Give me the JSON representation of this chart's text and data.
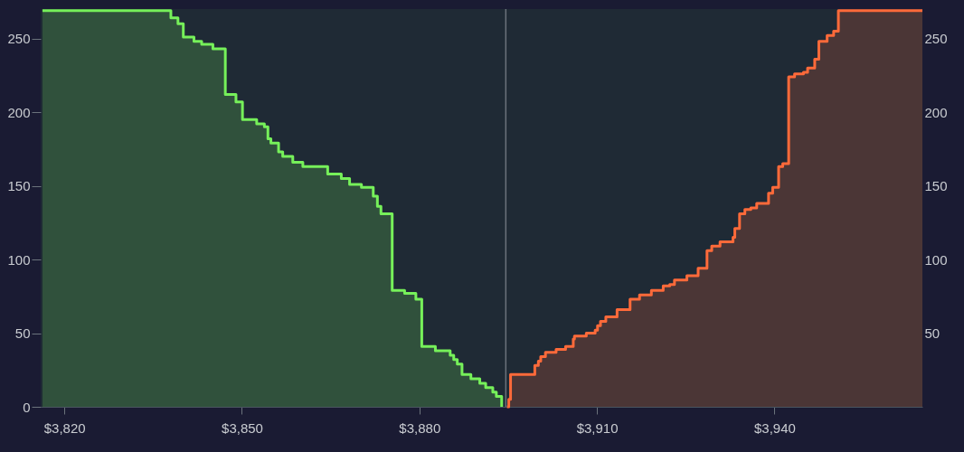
{
  "chart_data": {
    "type": "area",
    "xlim": [
      3816,
      3965
    ],
    "ylim": [
      0,
      270
    ],
    "y2lim": [
      0,
      270
    ],
    "xticks": [
      {
        "value": 3820,
        "label": "$3,820"
      },
      {
        "value": 3850,
        "label": "$3,850"
      },
      {
        "value": 3880,
        "label": "$3,880"
      },
      {
        "value": 3910,
        "label": "$3,910"
      },
      {
        "value": 3940,
        "label": "$3,940"
      }
    ],
    "yticks": [
      0,
      50,
      100,
      150,
      200,
      250
    ],
    "y2ticks": [
      50,
      100,
      150,
      200,
      250
    ],
    "ref_lines": [
      {
        "axis": "x",
        "value": 3894.6,
        "color": "#6b737c"
      }
    ],
    "series": [
      {
        "color": "#76f05a",
        "x": [
          3816.3,
          3838.0,
          3839.2,
          3840.1,
          3841.9,
          3843.2,
          3845.1,
          3847.2,
          3849.0,
          3850.1,
          3852.5,
          3853.8,
          3854.4,
          3854.9,
          3856.2,
          3856.9,
          3858.6,
          3860.3,
          3864.5,
          3866.8,
          3868.2,
          3870.2,
          3872.2,
          3872.9,
          3873.5,
          3875.4,
          3877.5,
          3879.4,
          3880.4,
          3882.7,
          3885.2,
          3885.8,
          3886.4,
          3887.2,
          3888.7,
          3890.2,
          3891.2,
          3892.4,
          3893.0,
          3893.9
        ],
        "values": [
          269,
          264,
          260,
          251,
          248,
          246,
          243,
          212,
          207,
          195,
          192,
          190,
          182,
          179,
          173,
          170,
          166,
          163,
          158,
          155,
          151,
          149,
          143,
          136,
          131,
          79,
          77,
          73,
          41,
          38,
          35,
          32,
          29,
          22,
          19,
          16,
          13,
          10,
          7,
          0
        ]
      },
      {
        "color": "#ff6a3a",
        "x": [
          3894.8,
          3895.1,
          3895.4,
          3899.5,
          3900.1,
          3900.5,
          3901.3,
          3903.1,
          3904.7,
          3906.0,
          3906.2,
          3908.2,
          3909.7,
          3910.1,
          3910.6,
          3911.5,
          3913.4,
          3915.6,
          3917.2,
          3919.2,
          3921.2,
          3922.3,
          3923.1,
          3925.2,
          3927.1,
          3928.6,
          3929.4,
          3930.8,
          3933.0,
          3933.3,
          3934.1,
          3935.0,
          3936.0,
          3937.0,
          3939.0,
          3939.7,
          3940.7,
          3941.4,
          3942.4,
          3943.4,
          3944.9,
          3945.6,
          3946.8,
          3947.5,
          3948.9,
          3950.0,
          3950.8,
          3965
        ],
        "values": [
          0,
          5,
          22,
          28,
          31,
          34,
          37,
          39,
          41,
          46,
          48,
          50,
          52,
          55,
          58,
          61,
          66,
          73,
          76,
          79,
          82,
          83,
          86,
          89,
          94,
          106,
          109,
          112,
          115,
          121,
          131,
          134,
          135,
          138,
          145,
          149,
          163,
          165,
          224,
          226,
          227,
          230,
          236,
          248,
          252,
          255,
          269,
          269
        ]
      }
    ]
  }
}
